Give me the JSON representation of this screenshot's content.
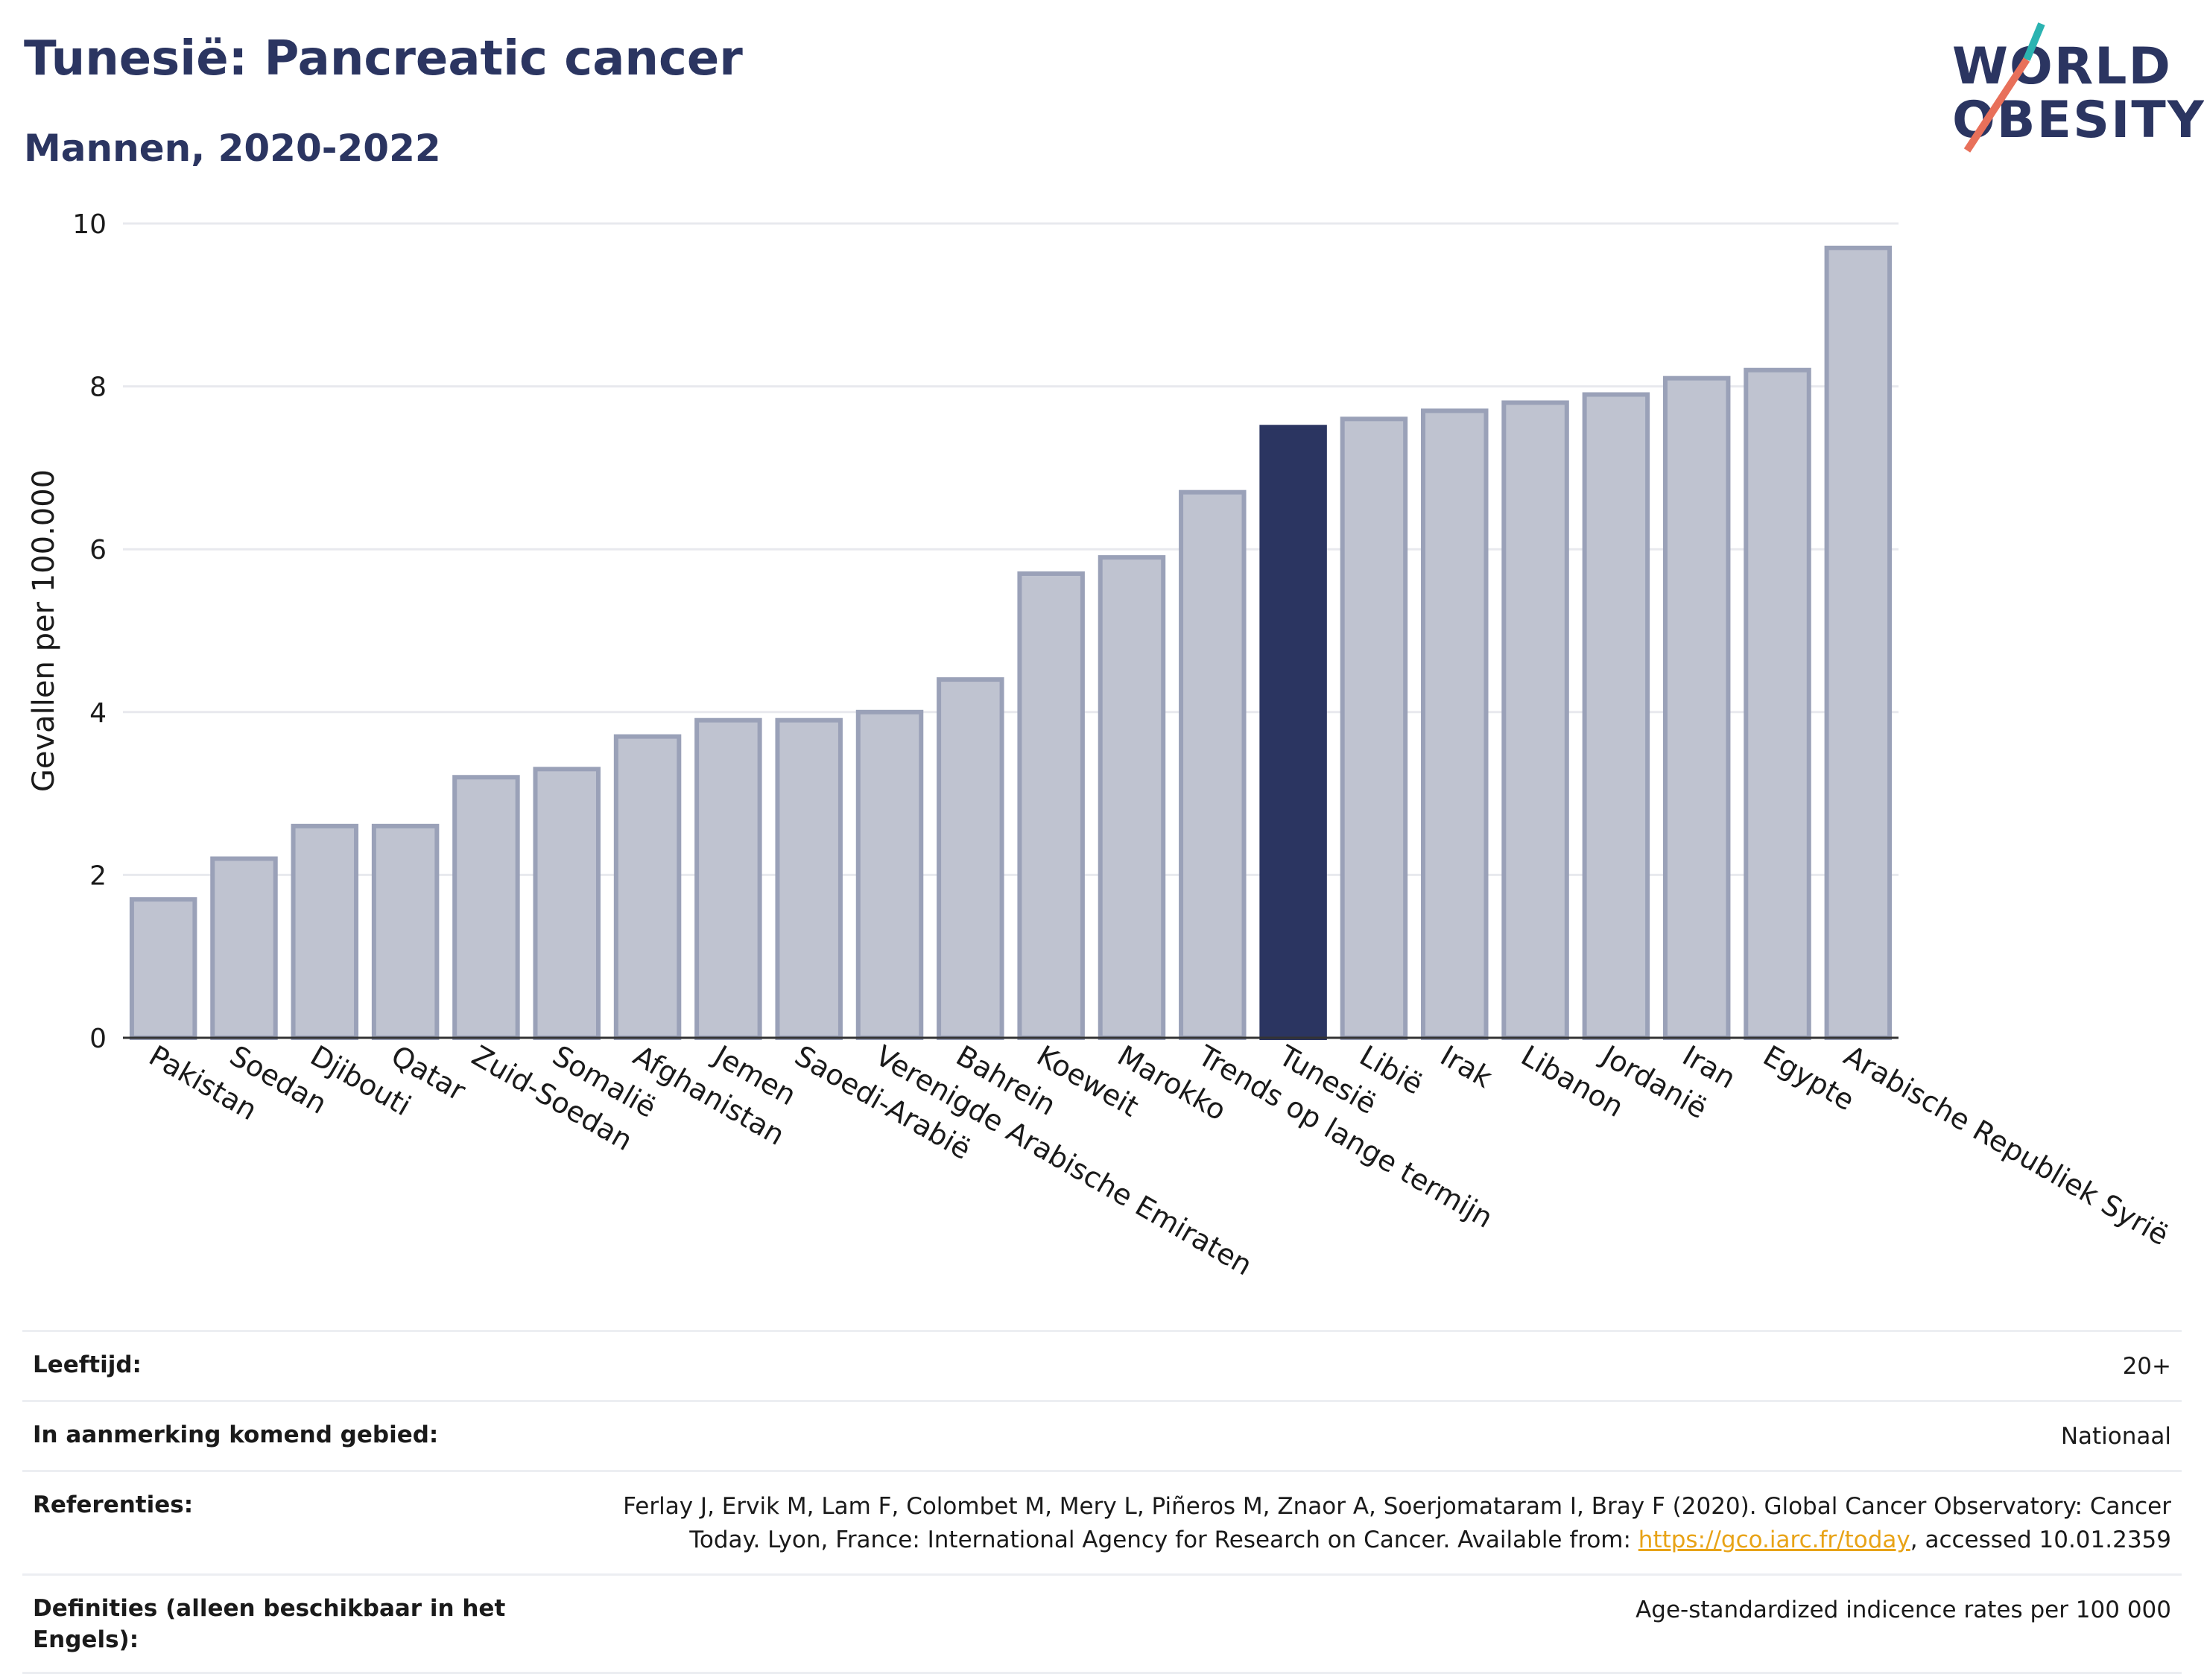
{
  "header": {
    "title": "Tunesië: Pancreatic cancer",
    "subtitle": "Mannen, 2020-2022"
  },
  "logo": {
    "line1": "WORLD",
    "line2": "OBESITY",
    "accent_teal": "#2bb3b1",
    "accent_red": "#e8705a"
  },
  "colors": {
    "bar": "#bfc3d0",
    "bar_stroke": "#9aa1b8",
    "highlight": "#2b3561",
    "grid": "#e8e9ee"
  },
  "chart_data": {
    "type": "bar",
    "title": "Tunesië: Pancreatic cancer",
    "subtitle": "Mannen, 2020-2022",
    "ylabel": "Gevallen per 100.000",
    "xlabel": "",
    "ylim": [
      0,
      10
    ],
    "yticks": [
      0,
      2,
      4,
      6,
      8,
      10
    ],
    "grid": true,
    "highlight": "Tunesië",
    "categories": [
      "Pakistan",
      "Soedan",
      "Djibouti",
      "Qatar",
      "Zuid-Soedan",
      "Somalië",
      "Afghanistan",
      "Jemen",
      "Saoedi-Arabië",
      "Verenigde Arabische Emiraten",
      "Bahrein",
      "Koeweit",
      "Marokko",
      "Trends op lange termijn",
      "Tunesië",
      "Libië",
      "Irak",
      "Libanon",
      "Jordanië",
      "Iran",
      "Egypte",
      "Arabische Republiek Syrië"
    ],
    "values": [
      1.7,
      2.2,
      2.6,
      2.6,
      3.2,
      3.3,
      3.7,
      3.9,
      3.9,
      4.0,
      4.4,
      5.7,
      5.9,
      6.7,
      7.5,
      7.6,
      7.7,
      7.8,
      7.9,
      8.1,
      8.2,
      9.7
    ]
  },
  "info_table": [
    {
      "label": "Leeftijd:",
      "value": "20+"
    },
    {
      "label": "In aanmerking komend gebied:",
      "value": "Nationaal"
    },
    {
      "label": "Referenties:",
      "value_before": "Ferlay J, Ervik M, Lam F, Colombet M, Mery L, Piñeros M, Znaor A, Soerjomataram I, Bray F (2020). Global Cancer Observatory: Cancer Today. Lyon, France: International Agency for Research on Cancer. Available from: ",
      "link": "https://gco.iarc.fr/today",
      "value_after": ", accessed 10.01.2359"
    },
    {
      "label": "Definities (alleen beschikbaar in het Engels):",
      "value": "Age-standardized indicence rates per 100 000"
    }
  ]
}
